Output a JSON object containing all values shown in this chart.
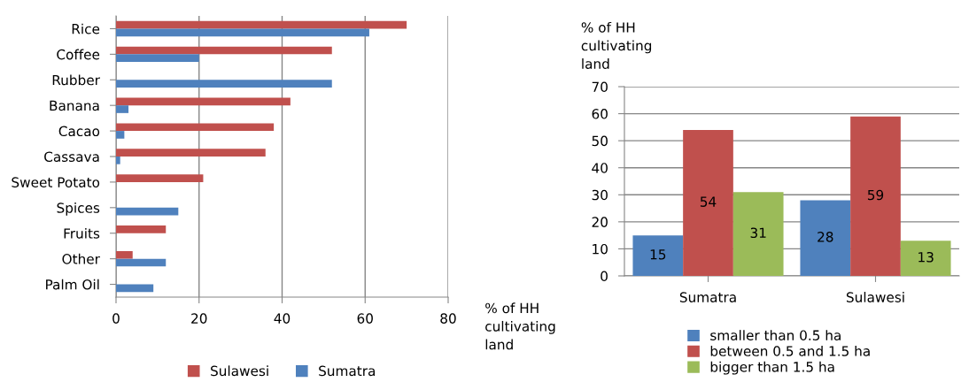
{
  "chart_data": [
    {
      "type": "bar",
      "orientation": "horizontal",
      "xlabel": "% of HH cultivating land",
      "categories": [
        "Rice",
        "Coffee",
        "Rubber",
        "Banana",
        "Cacao",
        "Cassava",
        "Sweet Potato",
        "Spices",
        "Fruits",
        "Other",
        "Palm Oil"
      ],
      "series": [
        {
          "name": "Sulawesi",
          "color": "#c0504d",
          "values": [
            70,
            52,
            null,
            42,
            38,
            36,
            21,
            null,
            12,
            4,
            null
          ]
        },
        {
          "name": "Sumatra",
          "color": "#4f81bd",
          "values": [
            61,
            20,
            52,
            3,
            2,
            1,
            null,
            15,
            null,
            12,
            9
          ]
        }
      ],
      "xlim": [
        0,
        80
      ],
      "xticks": [
        0,
        20,
        40,
        60,
        80
      ],
      "grid": "x",
      "legend": "bottom"
    },
    {
      "type": "bar",
      "ylabel": "% of HH cultivating land",
      "categories": [
        "Sumatra",
        "Sulawesi"
      ],
      "series": [
        {
          "name": "smaller than 0.5 ha",
          "color": "#4f81bd",
          "values": [
            15,
            28
          ]
        },
        {
          "name": "between 0.5 and 1.5 ha",
          "color": "#c0504d",
          "values": [
            54,
            59
          ]
        },
        {
          "name": "bigger than 1.5 ha",
          "color": "#9bbb59",
          "values": [
            31,
            13
          ]
        }
      ],
      "ylim": [
        0,
        70
      ],
      "yticks": [
        0,
        10,
        20,
        30,
        40,
        50,
        60,
        70
      ],
      "grid": "y",
      "data_labels": true,
      "legend": "bottom"
    }
  ]
}
